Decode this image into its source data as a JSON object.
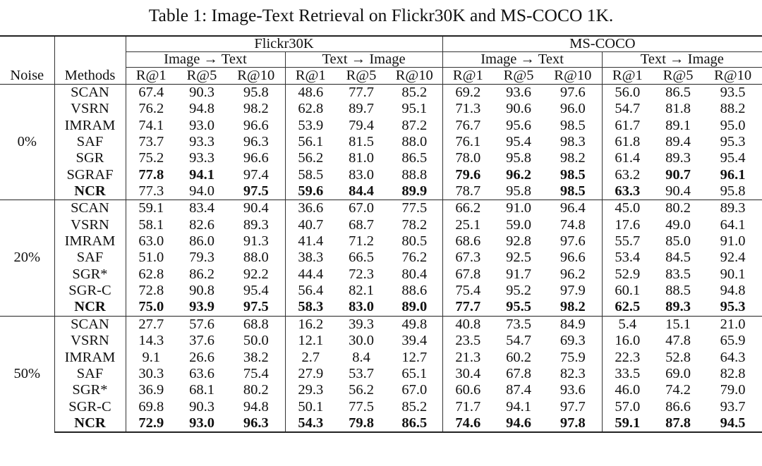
{
  "caption": "Table 1: Image-Text Retrieval on Flickr30K and MS-COCO 1K.",
  "header": {
    "datasets": [
      "Flickr30K",
      "MS-COCO"
    ],
    "directions": [
      "Image → Text",
      "Text → Image",
      "Image → Text",
      "Text → Image"
    ],
    "noise_label": "Noise",
    "methods_label": "Methods",
    "metrics": [
      "R@1",
      "R@5",
      "R@10",
      "R@1",
      "R@5",
      "R@10",
      "R@1",
      "R@5",
      "R@10",
      "R@1",
      "R@5",
      "R@10"
    ]
  },
  "groups": [
    {
      "noise": "0%",
      "rows": [
        {
          "method": "SCAN",
          "values": [
            "67.4",
            "90.3",
            "95.8",
            "48.6",
            "77.7",
            "85.2",
            "69.2",
            "93.6",
            "97.6",
            "56.0",
            "86.5",
            "93.5"
          ],
          "bold": []
        },
        {
          "method": "VSRN",
          "values": [
            "76.2",
            "94.8",
            "98.2",
            "62.8",
            "89.7",
            "95.1",
            "71.3",
            "90.6",
            "96.0",
            "54.7",
            "81.8",
            "88.2"
          ],
          "bold": []
        },
        {
          "method": "IMRAM",
          "values": [
            "74.1",
            "93.0",
            "96.6",
            "53.9",
            "79.4",
            "87.2",
            "76.7",
            "95.6",
            "98.5",
            "61.7",
            "89.1",
            "95.0"
          ],
          "bold": []
        },
        {
          "method": "SAF",
          "values": [
            "73.7",
            "93.3",
            "96.3",
            "56.1",
            "81.5",
            "88.0",
            "76.1",
            "95.4",
            "98.3",
            "61.8",
            "89.4",
            "95.3"
          ],
          "bold": []
        },
        {
          "method": "SGR",
          "values": [
            "75.2",
            "93.3",
            "96.6",
            "56.2",
            "81.0",
            "86.5",
            "78.0",
            "95.8",
            "98.2",
            "61.4",
            "89.3",
            "95.4"
          ],
          "bold": []
        },
        {
          "method": "SGRAF",
          "values": [
            "77.8",
            "94.1",
            "97.4",
            "58.5",
            "83.0",
            "88.8",
            "79.6",
            "96.2",
            "98.5",
            "63.2",
            "90.7",
            "96.1"
          ],
          "bold": [
            0,
            1,
            6,
            7,
            8,
            10,
            11
          ]
        },
        {
          "method": "NCR",
          "values": [
            "77.3",
            "94.0",
            "97.5",
            "59.6",
            "84.4",
            "89.9",
            "78.7",
            "95.8",
            "98.5",
            "63.3",
            "90.4",
            "95.8"
          ],
          "bold": [
            -1,
            2,
            3,
            4,
            5,
            8,
            9
          ]
        }
      ]
    },
    {
      "noise": "20%",
      "rows": [
        {
          "method": "SCAN",
          "values": [
            "59.1",
            "83.4",
            "90.4",
            "36.6",
            "67.0",
            "77.5",
            "66.2",
            "91.0",
            "96.4",
            "45.0",
            "80.2",
            "89.3"
          ],
          "bold": []
        },
        {
          "method": "VSRN",
          "values": [
            "58.1",
            "82.6",
            "89.3",
            "40.7",
            "68.7",
            "78.2",
            "25.1",
            "59.0",
            "74.8",
            "17.6",
            "49.0",
            "64.1"
          ],
          "bold": []
        },
        {
          "method": "IMRAM",
          "values": [
            "63.0",
            "86.0",
            "91.3",
            "41.4",
            "71.2",
            "80.5",
            "68.6",
            "92.8",
            "97.6",
            "55.7",
            "85.0",
            "91.0"
          ],
          "bold": []
        },
        {
          "method": "SAF",
          "values": [
            "51.0",
            "79.3",
            "88.0",
            "38.3",
            "66.5",
            "76.2",
            "67.3",
            "92.5",
            "96.6",
            "53.4",
            "84.5",
            "92.4"
          ],
          "bold": []
        },
        {
          "method": "SGR*",
          "values": [
            "62.8",
            "86.2",
            "92.2",
            "44.4",
            "72.3",
            "80.4",
            "67.8",
            "91.7",
            "96.2",
            "52.9",
            "83.5",
            "90.1"
          ],
          "bold": []
        },
        {
          "method": "SGR-C",
          "values": [
            "72.8",
            "90.8",
            "95.4",
            "56.4",
            "82.1",
            "88.6",
            "75.4",
            "95.2",
            "97.9",
            "60.1",
            "88.5",
            "94.8"
          ],
          "bold": []
        },
        {
          "method": "NCR",
          "values": [
            "75.0",
            "93.9",
            "97.5",
            "58.3",
            "83.0",
            "89.0",
            "77.7",
            "95.5",
            "98.2",
            "62.5",
            "89.3",
            "95.3"
          ],
          "bold": [
            -1,
            0,
            1,
            2,
            3,
            4,
            5,
            6,
            7,
            8,
            9,
            10,
            11
          ]
        }
      ]
    },
    {
      "noise": "50%",
      "rows": [
        {
          "method": "SCAN",
          "values": [
            "27.7",
            "57.6",
            "68.8",
            "16.2",
            "39.3",
            "49.8",
            "40.8",
            "73.5",
            "84.9",
            "5.4",
            "15.1",
            "21.0"
          ],
          "bold": []
        },
        {
          "method": "VSRN",
          "values": [
            "14.3",
            "37.6",
            "50.0",
            "12.1",
            "30.0",
            "39.4",
            "23.5",
            "54.7",
            "69.3",
            "16.0",
            "47.8",
            "65.9"
          ],
          "bold": []
        },
        {
          "method": "IMRAM",
          "values": [
            "9.1",
            "26.6",
            "38.2",
            "2.7",
            "8.4",
            "12.7",
            "21.3",
            "60.2",
            "75.9",
            "22.3",
            "52.8",
            "64.3"
          ],
          "bold": []
        },
        {
          "method": "SAF",
          "values": [
            "30.3",
            "63.6",
            "75.4",
            "27.9",
            "53.7",
            "65.1",
            "30.4",
            "67.8",
            "82.3",
            "33.5",
            "69.0",
            "82.8"
          ],
          "bold": []
        },
        {
          "method": "SGR*",
          "values": [
            "36.9",
            "68.1",
            "80.2",
            "29.3",
            "56.2",
            "67.0",
            "60.6",
            "87.4",
            "93.6",
            "46.0",
            "74.2",
            "79.0"
          ],
          "bold": []
        },
        {
          "method": "SGR-C",
          "values": [
            "69.8",
            "90.3",
            "94.8",
            "50.1",
            "77.5",
            "85.2",
            "71.7",
            "94.1",
            "97.7",
            "57.0",
            "86.6",
            "93.7"
          ],
          "bold": []
        },
        {
          "method": "NCR",
          "values": [
            "72.9",
            "93.0",
            "96.3",
            "54.3",
            "79.8",
            "86.5",
            "74.6",
            "94.6",
            "97.8",
            "59.1",
            "87.8",
            "94.5"
          ],
          "bold": [
            -1,
            0,
            1,
            2,
            3,
            4,
            5,
            6,
            7,
            8,
            9,
            10,
            11
          ]
        }
      ]
    }
  ]
}
